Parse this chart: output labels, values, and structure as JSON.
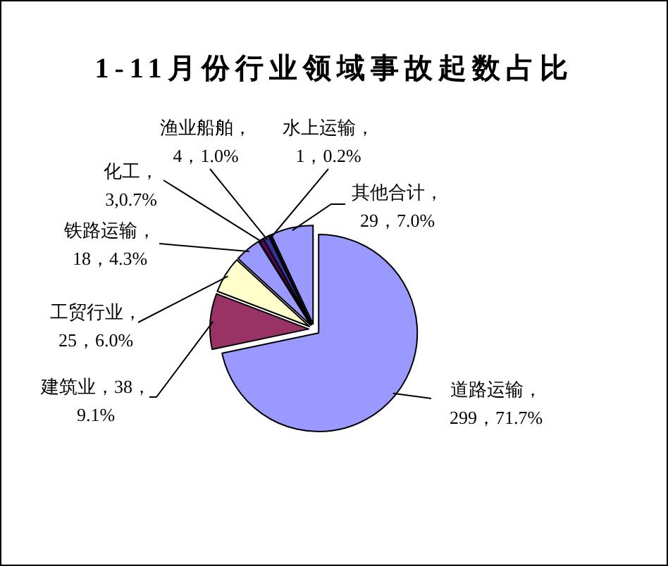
{
  "chart_data": {
    "type": "pie",
    "title": "1-11月份行业领域事故起数占比",
    "categories": [
      "道路运输",
      "建筑业",
      "工贸行业",
      "铁路运输",
      "化工",
      "渔业船舶",
      "水上运输",
      "其他合计"
    ],
    "values": [
      299,
      38,
      25,
      18,
      3,
      4,
      1,
      29
    ],
    "colors": [
      "#9999ff",
      "#993366",
      "#ffffcc",
      "#9999ff",
      "#660066",
      "#333399",
      "#000080",
      "#9999ff"
    ],
    "value_labels": [
      "，\n299，71.7%",
      "，38，\n9.1%",
      "，\n25，6.0%",
      "，\n18，4.3%",
      "，\n3,0.7%",
      "，\n4，1.0%",
      "，\n1，0.2%",
      "，\n29，7.0%"
    ]
  }
}
